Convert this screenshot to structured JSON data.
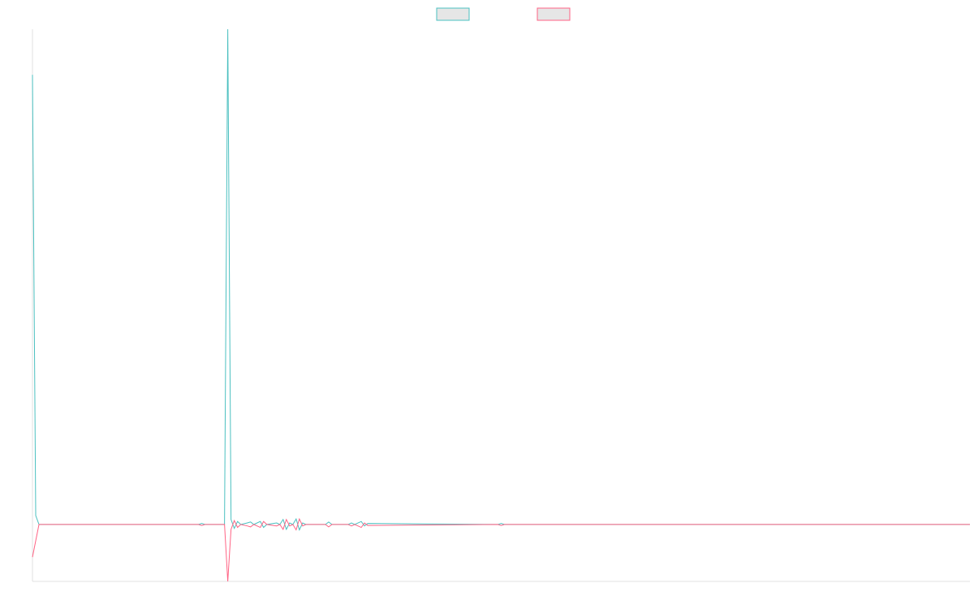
{
  "chart_data": {
    "type": "line",
    "x": [
      0,
      1,
      2,
      51,
      52,
      53,
      59,
      60,
      61,
      62,
      63,
      64,
      66,
      67,
      68,
      70,
      71,
      72,
      75,
      76,
      77,
      78,
      79,
      80,
      81,
      82,
      83,
      84,
      85,
      90,
      91,
      92,
      97,
      98,
      99,
      100,
      101,
      102,
      103,
      143,
      144,
      145,
      288
    ],
    "series": [
      {
        "color": "#4bc0c0",
        "values": [
          90.8,
          1.8,
          0,
          0,
          0.2,
          0,
          0,
          100,
          1,
          -0.8,
          0.6,
          0,
          0.3,
          0.5,
          0,
          0.6,
          -0.6,
          0,
          0.3,
          0,
          1,
          -1,
          0.3,
          0,
          1.1,
          -1.1,
          0.3,
          0,
          0,
          0,
          0.5,
          0,
          0,
          0.3,
          0,
          0.3,
          0.6,
          -0.3,
          0.2,
          0,
          0.2,
          0,
          0
        ]
      },
      {
        "color": "#ff6384",
        "values": [
          -6.6,
          -3.3,
          0,
          0,
          -0.2,
          0,
          0,
          -11.5,
          -1,
          0.8,
          -0.6,
          0,
          -0.3,
          -0.5,
          0,
          -0.6,
          0.6,
          0,
          -0.3,
          0,
          -1,
          1,
          -0.3,
          0,
          -1.1,
          1.1,
          -0.3,
          0,
          0,
          0,
          -0.5,
          0,
          0,
          -0.3,
          0,
          -0.3,
          -0.6,
          0.3,
          -0.2,
          0,
          -0.2,
          0,
          0
        ]
      }
    ],
    "xlim": [
      0,
      288
    ],
    "ylim": [
      -11.5,
      100
    ],
    "legend": "top"
  }
}
